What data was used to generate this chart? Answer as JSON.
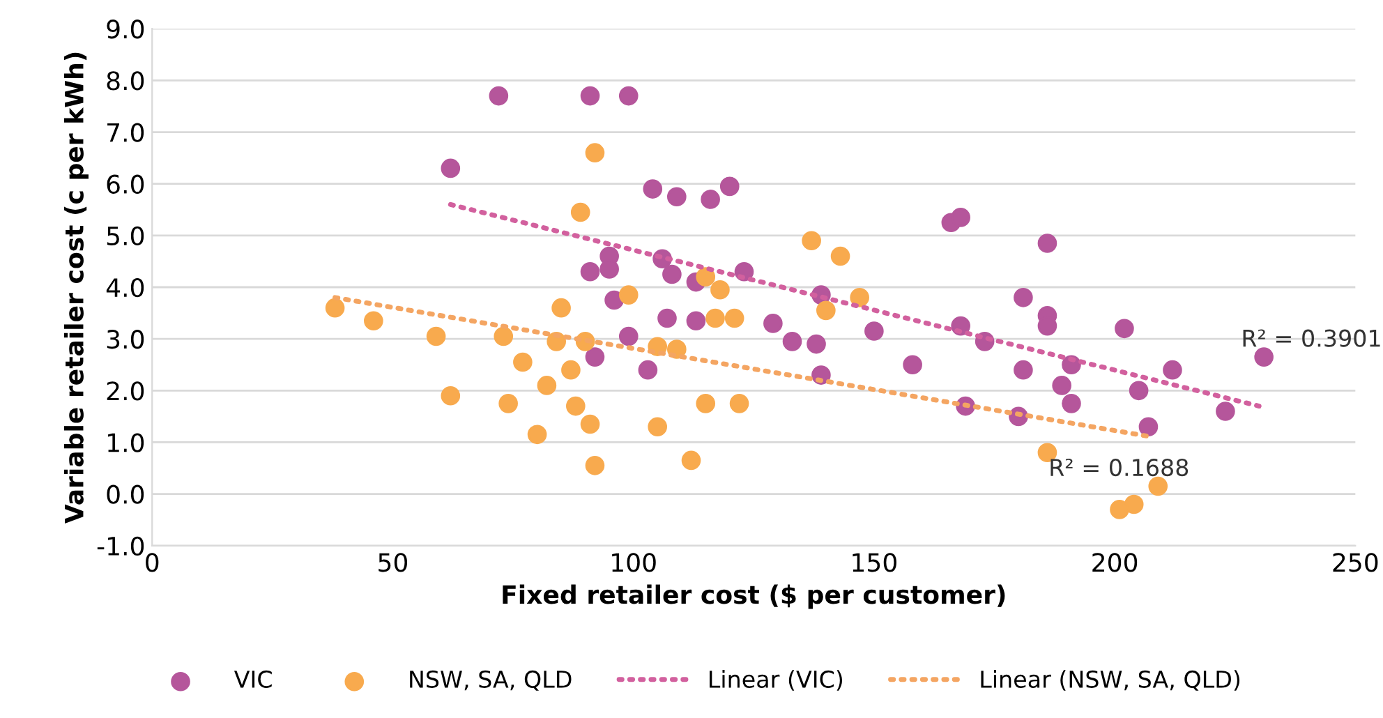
{
  "chart_data": {
    "type": "scatter",
    "xlabel": "Fixed retailer cost ($ per customer)",
    "ylabel": "Variable retailer cost (c per kWh)",
    "xlim": [
      0,
      250
    ],
    "xticks": [
      0,
      50,
      100,
      150,
      200,
      250
    ],
    "ylim": [
      -1,
      9
    ],
    "yticks": [
      {
        "value": -1,
        "label": "-1.0"
      },
      {
        "value": 0,
        "label": "0.0"
      },
      {
        "value": 1,
        "label": "1.0"
      },
      {
        "value": 2,
        "label": "2.0"
      },
      {
        "value": 3,
        "label": "3.0"
      },
      {
        "value": 4,
        "label": "4.0"
      },
      {
        "value": 5,
        "label": "5.0"
      },
      {
        "value": 6,
        "label": "6.0"
      },
      {
        "value": 7,
        "label": "7.0"
      },
      {
        "value": 8,
        "label": "8.0"
      },
      {
        "value": 9,
        "label": "9.0"
      }
    ],
    "grid": "y",
    "legend": "bottom",
    "marker": "circle",
    "series": [
      {
        "name": "VIC",
        "color": "#b5569b",
        "x": [
          62,
          72,
          91,
          99,
          104,
          109,
          116,
          120,
          166,
          168,
          186,
          95,
          91,
          95,
          106,
          108,
          113,
          123,
          96,
          99,
          107,
          113,
          129,
          139,
          150,
          99,
          92,
          103,
          133,
          138,
          139,
          158,
          181,
          186,
          186,
          202,
          231,
          168,
          173,
          181,
          191,
          189,
          191,
          205,
          212,
          223,
          169,
          180,
          207
        ],
        "values": [
          6.3,
          7.7,
          7.7,
          7.7,
          5.9,
          5.75,
          5.7,
          5.95,
          5.25,
          5.35,
          4.85,
          4.6,
          4.3,
          4.35,
          4.55,
          4.25,
          4.1,
          4.3,
          3.75,
          null,
          3.4,
          3.35,
          3.3,
          3.85,
          3.15,
          3.05,
          2.65,
          2.4,
          2.95,
          2.9,
          2.3,
          2.5,
          3.8,
          3.45,
          3.25,
          3.2,
          2.65,
          3.25,
          2.95,
          2.4,
          2.5,
          2.1,
          1.75,
          2.0,
          2.4,
          1.6,
          1.7,
          1.5,
          1.3
        ]
      },
      {
        "name": "NSW, SA, QLD",
        "color": "#f8aa4e",
        "x": [
          92,
          89,
          85,
          99,
          115,
          118,
          121,
          117,
          137,
          143,
          147,
          140,
          84,
          90,
          105,
          109,
          87,
          82,
          88,
          91,
          80,
          105,
          115,
          122,
          92,
          112,
          38,
          46,
          59,
          73,
          77,
          62,
          74,
          186,
          209,
          204,
          201
        ],
        "values": [
          6.6,
          5.45,
          3.6,
          3.85,
          4.2,
          3.95,
          3.4,
          3.4,
          4.9,
          4.6,
          3.8,
          3.55,
          2.95,
          2.95,
          2.85,
          2.8,
          2.4,
          2.1,
          1.7,
          1.35,
          1.15,
          1.3,
          1.75,
          1.75,
          0.55,
          0.65,
          3.6,
          3.35,
          3.05,
          3.05,
          2.55,
          1.9,
          1.75,
          0.8,
          0.15,
          -0.2,
          -0.3
        ]
      },
      {
        "name": "Linear (VIC)",
        "type": "line",
        "color": "#d2609e",
        "line_style": "dotted",
        "marker": "none",
        "x": [
          62,
          230
        ],
        "values": [
          5.6,
          1.7
        ]
      },
      {
        "name": "Linear (NSW, SA, QLD)",
        "type": "line",
        "color": "#f4a562",
        "line_style": "dotted",
        "marker": "none",
        "x": [
          38,
          208
        ],
        "values": [
          3.8,
          1.1
        ]
      }
    ],
    "annotations": [
      "R² = 0.3901",
      "R² = 0.1688"
    ]
  }
}
